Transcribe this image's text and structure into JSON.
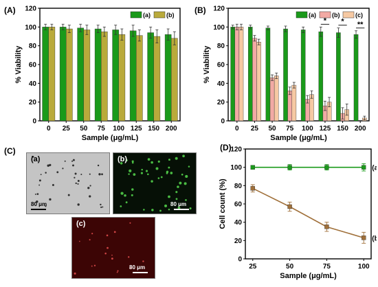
{
  "panels": {
    "A": "(A)",
    "B": "(B)",
    "C": "(C)",
    "D": "(D)"
  },
  "colors": {
    "green": "#1a9a1a",
    "olive": "#b9aa3b",
    "pink": "#f2aaa4",
    "peach": "#f6c9a3",
    "lineB": "#a0703a",
    "axis": "#000000"
  },
  "micrographs": {
    "a": {
      "label": "(a)",
      "scale": "80 μm",
      "bg": "#c4c4c4",
      "dot": "#151515"
    },
    "b": {
      "label": "(b)",
      "scale": "80 μm",
      "bg": "#061006",
      "dot": "#57d94f"
    },
    "c": {
      "label": "(c)",
      "scale": "80 μm",
      "bg": "#3c0505",
      "dot": "#e85050"
    }
  },
  "chart_data": [
    {
      "panel": "A",
      "type": "bar",
      "xlabel": "Sample (μg/mL)",
      "ylabel": "% Viability",
      "ylim": [
        0,
        120
      ],
      "yticks": [
        0,
        20,
        40,
        60,
        80,
        100,
        120
      ],
      "categories": [
        "0",
        "25",
        "50",
        "75",
        "100",
        "125",
        "150",
        "200"
      ],
      "legend_position": "top-right",
      "series": [
        {
          "name": "(a)",
          "color": "#1a9a1a",
          "values": [
            100,
            100,
            99,
            98,
            97,
            96,
            94,
            92
          ],
          "errors": [
            3,
            3,
            4,
            4,
            5,
            6,
            6,
            6
          ]
        },
        {
          "name": "(b)",
          "color": "#b9aa3b",
          "values": [
            100,
            98,
            97,
            95,
            92,
            91,
            90,
            88
          ],
          "errors": [
            3,
            4,
            5,
            5,
            6,
            6,
            7,
            7
          ]
        }
      ]
    },
    {
      "panel": "B",
      "type": "bar",
      "xlabel": "Sample (μg/mL)",
      "ylabel": "% Viability",
      "ylim": [
        0,
        120
      ],
      "yticks": [
        0,
        20,
        40,
        60,
        80,
        100,
        120
      ],
      "categories": [
        "0",
        "25",
        "50",
        "75",
        "100",
        "125",
        "150",
        "200"
      ],
      "legend_position": "top-right",
      "series": [
        {
          "name": "(a)",
          "color": "#1a9a1a",
          "values": [
            100,
            100,
            99,
            98,
            97,
            95,
            94,
            92
          ],
          "errors": [
            2,
            2,
            2,
            3,
            3,
            5,
            5,
            4
          ]
        },
        {
          "name": "(b)",
          "color": "#f2aaa4",
          "values": [
            100,
            88,
            46,
            32,
            23,
            16,
            8,
            0
          ],
          "errors": [
            3,
            3,
            3,
            4,
            4,
            5,
            6,
            0
          ]
        },
        {
          "name": "(c)",
          "color": "#f6c9a3",
          "values": [
            100,
            84,
            48,
            38,
            28,
            20,
            12,
            3
          ],
          "errors": [
            3,
            3,
            3,
            3,
            4,
            5,
            6,
            2
          ]
        }
      ],
      "annotations": [
        {
          "text": "*",
          "category": "125"
        },
        {
          "text": "*",
          "category": "150"
        },
        {
          "text": "**",
          "category": "200"
        }
      ]
    },
    {
      "panel": "D",
      "type": "line",
      "xlabel": "Sample (μg/mL)",
      "ylabel": "Cell count (%)",
      "ylim": [
        0,
        120
      ],
      "xlim": [
        20,
        105
      ],
      "yticks": [
        0,
        20,
        40,
        60,
        80,
        100,
        120
      ],
      "xticks": [
        25,
        50,
        75,
        100
      ],
      "series": [
        {
          "name": "(a)",
          "color": "#1a9a1a",
          "x": [
            25,
            50,
            75,
            100
          ],
          "y": [
            100,
            100,
            100,
            100
          ],
          "errors": [
            2,
            3,
            3,
            4
          ]
        },
        {
          "name": "(b)",
          "color": "#a0703a",
          "x": [
            25,
            50,
            75,
            100
          ],
          "y": [
            77,
            57,
            35,
            23
          ],
          "errors": [
            4,
            5,
            5,
            6
          ]
        }
      ]
    }
  ]
}
